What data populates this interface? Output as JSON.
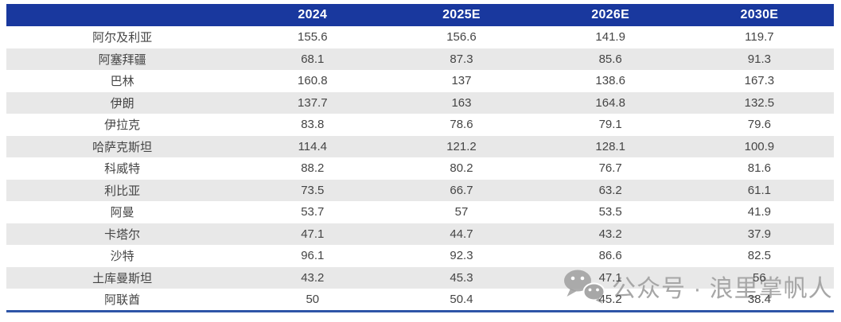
{
  "table": {
    "columns": [
      "",
      "2024",
      "2025E",
      "2026E",
      "2030E"
    ],
    "rows": [
      {
        "name": "阿尔及利亚",
        "values": [
          "155.6",
          "156.6",
          "141.9",
          "119.7"
        ]
      },
      {
        "name": "阿塞拜疆",
        "values": [
          "68.1",
          "87.3",
          "85.6",
          "91.3"
        ]
      },
      {
        "name": "巴林",
        "values": [
          "160.8",
          "137",
          "138.6",
          "167.3"
        ]
      },
      {
        "name": "伊朗",
        "values": [
          "137.7",
          "163",
          "164.8",
          "132.5"
        ]
      },
      {
        "name": "伊拉克",
        "values": [
          "83.8",
          "78.6",
          "79.1",
          "79.6"
        ]
      },
      {
        "name": "哈萨克斯坦",
        "values": [
          "114.4",
          "121.2",
          "128.1",
          "100.9"
        ]
      },
      {
        "name": "科威特",
        "values": [
          "88.2",
          "80.2",
          "76.7",
          "81.6"
        ]
      },
      {
        "name": "利比亚",
        "values": [
          "73.5",
          "66.7",
          "63.2",
          "61.1"
        ]
      },
      {
        "name": "阿曼",
        "values": [
          "53.7",
          "57",
          "53.5",
          "41.9"
        ]
      },
      {
        "name": "卡塔尔",
        "values": [
          "47.1",
          "44.7",
          "43.2",
          "37.9"
        ]
      },
      {
        "name": "沙特",
        "values": [
          "96.1",
          "92.3",
          "86.6",
          "82.5"
        ]
      },
      {
        "name": "土库曼斯坦",
        "values": [
          "43.2",
          "45.3",
          "47.1",
          "56"
        ]
      },
      {
        "name": "阿联酋",
        "values": [
          "50",
          "50.4",
          "45.2",
          "38.4"
        ]
      }
    ]
  },
  "watermark": {
    "icon": "wechat-icon",
    "text": "公众号 · 浪里掌帆人",
    "color": "#a6a6a6"
  },
  "colors": {
    "header_bg": "#19389E",
    "header_text": "#ffffff",
    "stripe": "#E8E8E8",
    "body_text": "#454545",
    "bottom_rule": "#2E55A7"
  },
  "chart_data": {
    "type": "table",
    "title": "",
    "categories": [
      "阿尔及利亚",
      "阿塞拜疆",
      "巴林",
      "伊朗",
      "伊拉克",
      "哈萨克斯坦",
      "科威特",
      "利比亚",
      "阿曼",
      "卡塔尔",
      "沙特",
      "土库曼斯坦",
      "阿联酋"
    ],
    "series": [
      {
        "name": "2024",
        "values": [
          155.6,
          68.1,
          160.8,
          137.7,
          83.8,
          114.4,
          88.2,
          73.5,
          53.7,
          47.1,
          96.1,
          43.2,
          50
        ]
      },
      {
        "name": "2025E",
        "values": [
          156.6,
          87.3,
          137,
          163,
          78.6,
          121.2,
          80.2,
          66.7,
          57,
          44.7,
          92.3,
          45.3,
          50.4
        ]
      },
      {
        "name": "2026E",
        "values": [
          141.9,
          85.6,
          138.6,
          164.8,
          79.1,
          128.1,
          76.7,
          63.2,
          53.5,
          43.2,
          86.6,
          47.1,
          45.2
        ]
      },
      {
        "name": "2030E",
        "values": [
          119.7,
          91.3,
          167.3,
          132.5,
          79.6,
          100.9,
          81.6,
          61.1,
          41.9,
          37.9,
          82.5,
          56,
          38.4
        ]
      }
    ]
  }
}
